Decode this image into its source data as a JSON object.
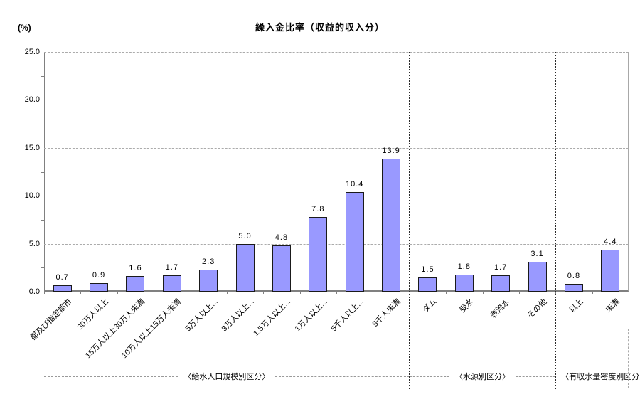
{
  "title": "繰入金比率（収益的収入分）",
  "unit_label": "(%)",
  "chart_data": {
    "type": "bar",
    "title": "繰入金比率（収益的収入分）",
    "ylabel": "(%)",
    "xlabel": "",
    "ylim": [
      0,
      25
    ],
    "ytick_step": 5,
    "ytick_labels": [
      "0.0",
      "5.0",
      "10.0",
      "15.0",
      "20.0",
      "25.0"
    ],
    "grid": true,
    "legend": "none",
    "categories": [
      "都及び指定都市",
      "30万人以上",
      "15万人以上30万人未満",
      "10万人以上15万人未満",
      "5万人以上...",
      "3万人以上...",
      "1.5万人以上...",
      "1万人以上...",
      "5千人以上...",
      "5千人未満",
      "ダム",
      "受水",
      "表流水",
      "その他",
      "以上",
      "未満"
    ],
    "values": [
      0.7,
      0.9,
      1.6,
      1.7,
      2.3,
      5.0,
      4.8,
      7.8,
      10.4,
      13.9,
      1.5,
      1.8,
      1.7,
      3.1,
      0.8,
      4.4
    ],
    "value_labels": [
      "0.7",
      "0.9",
      "1.6",
      "1.7",
      "2.3",
      "5.0",
      "4.8",
      "7.8",
      "10.4",
      "13.9",
      "1.5",
      "1.8",
      "1.7",
      "3.1",
      "0.8",
      "4.4"
    ],
    "groups": [
      {
        "label": "〈給水人口規模別区分〉",
        "start": 0,
        "count": 10
      },
      {
        "label": "〈水源別区分〉",
        "start": 10,
        "count": 4
      },
      {
        "label": "〈有収水量密度別区分〉",
        "start": 14,
        "count": 2
      }
    ],
    "colors": {
      "bar_fill": "#9999FF",
      "bar_border": "#1a1a1a",
      "gridline": "#ababab",
      "axis": "#808080",
      "separator": "#2a2a2a"
    }
  }
}
